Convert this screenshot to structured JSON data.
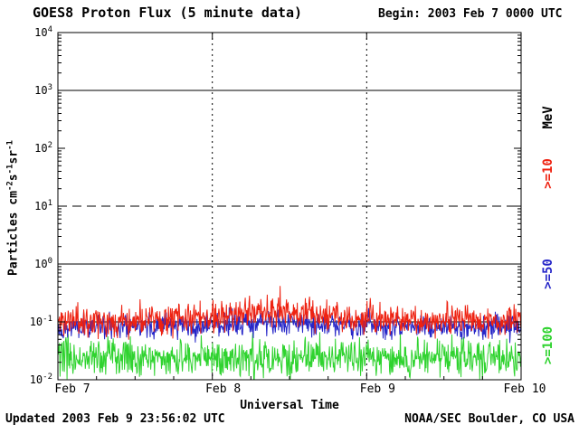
{
  "page": {
    "background": "#ffffff",
    "text_color": "#000000"
  },
  "header": {
    "title": "GOES8 Proton Flux (5 minute data)",
    "begin_label": "Begin: 2003 Feb 7 0000 UTC"
  },
  "footer": {
    "updated": "Updated 2003 Feb 9 23:56:02 UTC",
    "source": "NOAA/SEC Boulder, CO USA"
  },
  "chart_data": {
    "type": "line",
    "title": "GOES8 Proton Flux (5 minute data)",
    "begin": "2003 Feb 7 0000 UTC",
    "xlabel": "Universal Time",
    "ylabel": "Particles cm-2 s-1 sr-1",
    "ylabel_parts": [
      {
        "text": "Particles cm"
      },
      {
        "sup": "-2"
      },
      {
        "text": "s"
      },
      {
        "sup": "-1"
      },
      {
        "text": "sr"
      },
      {
        "sup": "-1"
      }
    ],
    "y_scale": "log10",
    "ylim_log10": [
      -2,
      4
    ],
    "y_tick_exponents": [
      4,
      3,
      2,
      1,
      0,
      -1,
      -2
    ],
    "x_ticks": [
      "Feb 7",
      "Feb 8",
      "Feb 9",
      "Feb 10"
    ],
    "days": 3,
    "samples_per_day": 288,
    "grid": {
      "hlines": [
        {
          "log10": 3,
          "style": "solid"
        },
        {
          "log10": 1,
          "style": "dashed"
        },
        {
          "log10": 0,
          "style": "solid"
        },
        {
          "log10": -1,
          "style": "solid"
        }
      ],
      "vline_days": [
        1,
        2
      ],
      "vline_style": "dotted"
    },
    "legend": {
      "unit_label": "MeV",
      "unit_color": "#000000",
      "orientation": "rotated-90",
      "position": "right"
    },
    "series": [
      {
        "name": ">=10",
        "unit": "MeV",
        "color": "#ee2211",
        "baseline_log10": -0.98,
        "envelope_log10": [
          -1.45,
          -0.4
        ],
        "synthesis": {
          "seed": 11,
          "sigma_log10": 0.13,
          "spike_prob": 0.04,
          "spike_amp": 0.3,
          "bump": {
            "center": 1.4,
            "width": 0.45,
            "amp": 0.16
          },
          "min_log10": -1.5,
          "max_log10": -0.38
        }
      },
      {
        "name": ">=50",
        "unit": "MeV",
        "color": "#2626c8",
        "baseline_log10": -1.08,
        "envelope_log10": [
          -1.5,
          -0.75
        ],
        "synthesis": {
          "seed": 22,
          "sigma_log10": 0.1,
          "spike_prob": 0.02,
          "spike_amp": 0.2,
          "bump": {
            "center": 1.4,
            "width": 0.45,
            "amp": 0.05
          },
          "min_log10": -1.55,
          "max_log10": -0.75
        }
      },
      {
        "name": ">=100",
        "unit": "MeV",
        "color": "#2fd32f",
        "baseline_log10": -1.62,
        "envelope_log10": [
          -2.0,
          -1.05
        ],
        "synthesis": {
          "seed": 33,
          "sigma_log10": 0.16,
          "spike_prob": 0.03,
          "spike_amp": 0.25,
          "min_log10": -1.99,
          "max_log10": -1.05
        }
      }
    ]
  }
}
